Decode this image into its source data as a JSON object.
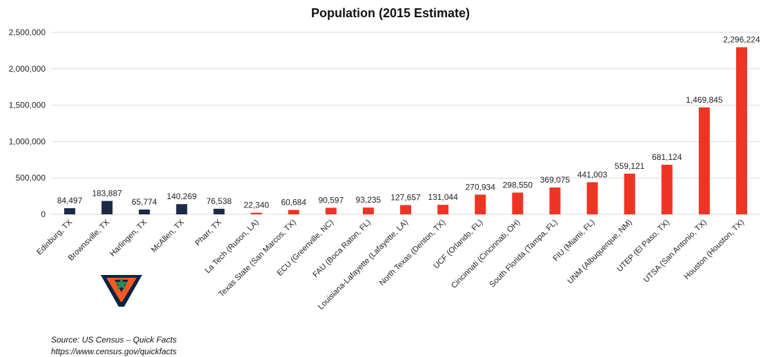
{
  "colors": {
    "highlight": "#1b2a45",
    "default": "#ee3524",
    "grid": "#d9d9d9",
    "logo_navy": "#0c2340",
    "logo_orange": "#f15a22",
    "logo_green": "#2e8b57"
  },
  "logo": {
    "icon": "utrgv-v-star-logo"
  },
  "source_note": "Source: US Census – Quick Facts",
  "source_url": "https://www.census.gov/quickfacts",
  "chart_data": {
    "type": "bar",
    "title": "Population (2015 Estimate)",
    "xlabel": "",
    "ylabel": "",
    "ylim": [
      0,
      2500000
    ],
    "yticks": [
      0,
      500000,
      1000000,
      1500000,
      2000000,
      2500000
    ],
    "ytick_labels": [
      "0",
      "500,000",
      "1,000,000",
      "1,500,000",
      "2,000,000",
      "2,500,000"
    ],
    "grid": true,
    "legend": "none",
    "categories": [
      "Edinburg, TX",
      "Brownsville, TX",
      "Harlingen, TX",
      "McAllen, TX",
      "Pharr, TX",
      "La Tech (Ruson, LA)",
      "Texas State (San Marcos, TX)",
      "ECU (Greenville, NC)",
      "FAU (Boca Raton, FL)",
      "Louisiana-Lafayette (Lafayette, LA)",
      "North Texas (Denton, TX)",
      "UCF (Orlando, FL)",
      "Cincinnati (Cincinnati, OH)",
      "South Florida (Tampa, FL)",
      "FIU (Miami, FL)",
      "UNM (Albuquerque, NM)",
      "UTEP (El Paso, TX)",
      "UTSA (San Antonio, TX)",
      "Houston (Houston, TX)"
    ],
    "values": [
      84497,
      183887,
      65774,
      140269,
      76538,
      22340,
      60684,
      90597,
      93235,
      127657,
      131044,
      270934,
      298550,
      369075,
      441003,
      559121,
      681124,
      1469845,
      2296224
    ],
    "data_labels": [
      "84,497",
      "183,887",
      "65,774",
      "140,269",
      "76,538",
      "22,340",
      "60,684",
      "90,597",
      "93,235",
      "127,657",
      "131,044",
      "270,934",
      "298,550",
      "369,075",
      "441,003",
      "559,121",
      "681,124",
      "1,469,845",
      "2,296,224"
    ],
    "highlighted_count": 5
  }
}
